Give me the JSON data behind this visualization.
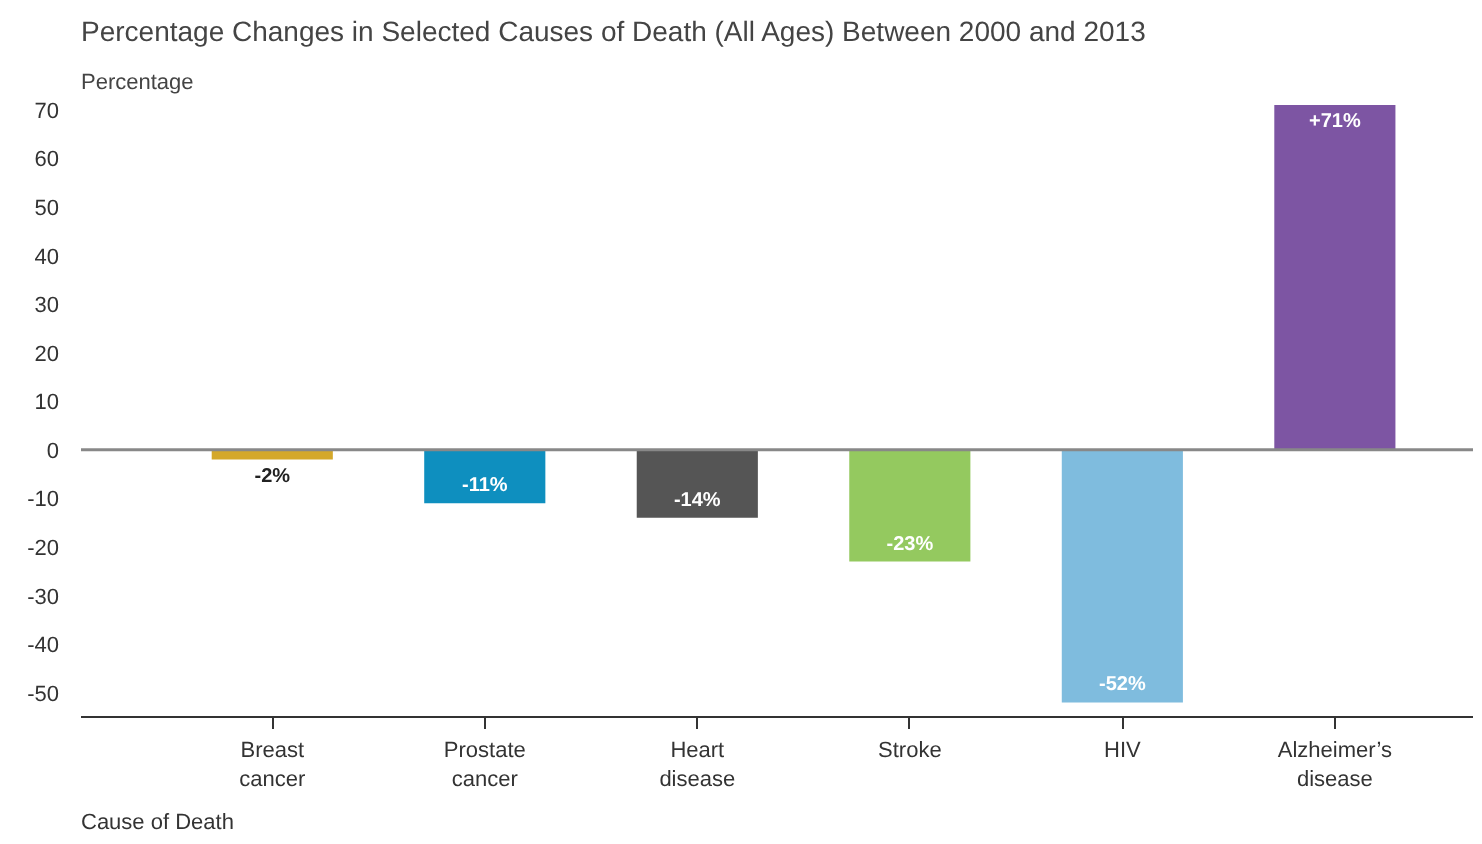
{
  "chart_data": {
    "type": "bar",
    "title": "Percentage Changes in Selected Causes of Death (All Ages) Between 2000 and 2013",
    "ylabel": "Percentage",
    "xlabel": "Cause of Death",
    "categories": [
      "Breast\ncancer",
      "Prostate\ncancer",
      "Heart\ndisease",
      "Stroke",
      "HIV",
      "Alzheimer’s\ndisease"
    ],
    "values": [
      -2,
      -11,
      -14,
      -23,
      -52,
      71
    ],
    "colors": [
      "#d4a82a",
      "#0e8fbf",
      "#555555",
      "#94c95f",
      "#7fbcde",
      "#7d55a3"
    ],
    "value_labels": [
      "-2%",
      "-11%",
      "-14%",
      "-23%",
      "-52%",
      "+71%"
    ],
    "ylim": [
      -55,
      71
    ],
    "yticks": [
      -50,
      -40,
      -30,
      -20,
      -10,
      0,
      10,
      20,
      30,
      40,
      50,
      60,
      70
    ],
    "ref_lines": [
      {
        "axis": "y",
        "value": 0,
        "color": "#888888"
      }
    ],
    "grid": false
  }
}
